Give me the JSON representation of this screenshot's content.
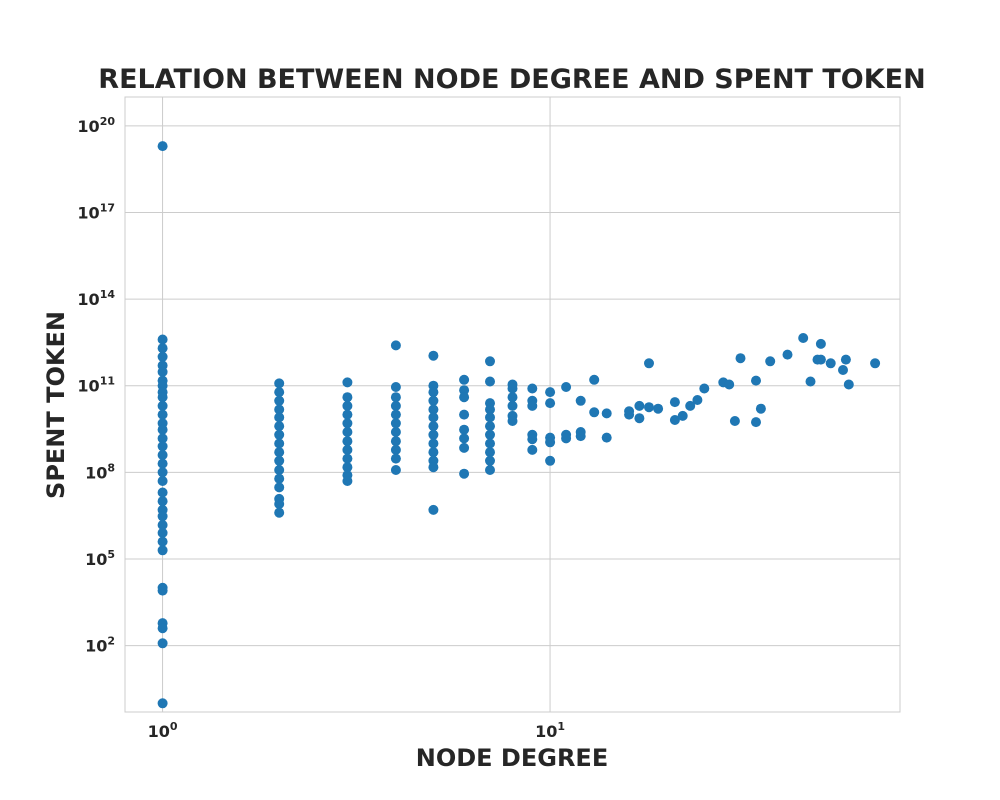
{
  "chart_data": {
    "type": "scatter",
    "title": "RELATION BETWEEN NODE DEGREE AND SPENT TOKEN",
    "xlabel": "NODE DEGREE",
    "ylabel": "SPENT TOKEN",
    "xscale": "log",
    "yscale": "log",
    "xlim": [
      0.8,
      80
    ],
    "ylim": [
      0.5,
      1e+21
    ],
    "grid": true,
    "marker_color": "#1f77b4",
    "x_ticks": [
      {
        "base": "10",
        "exp": "0",
        "value": 1
      },
      {
        "base": "10",
        "exp": "1",
        "value": 10
      }
    ],
    "y_ticks": [
      {
        "base": "10",
        "exp": "2",
        "value": 100.0
      },
      {
        "base": "10",
        "exp": "5",
        "value": 100000.0
      },
      {
        "base": "10",
        "exp": "8",
        "value": 100000000.0
      },
      {
        "base": "10",
        "exp": "11",
        "value": 100000000000.0
      },
      {
        "base": "10",
        "exp": "14",
        "value": 100000000000000.0
      },
      {
        "base": "10",
        "exp": "17",
        "value": 1e+17
      },
      {
        "base": "10",
        "exp": "20",
        "value": 1e+20
      }
    ],
    "points": [
      [
        1,
        2e+19
      ],
      [
        1,
        4000000000000.0
      ],
      [
        1,
        2000000000000.0
      ],
      [
        1,
        1000000000000.0
      ],
      [
        1,
        500000000000.0
      ],
      [
        1,
        300000000000.0
      ],
      [
        1,
        150000000000.0
      ],
      [
        1,
        100000000000.0
      ],
      [
        1,
        60000000000.0
      ],
      [
        1,
        40000000000.0
      ],
      [
        1,
        20000000000.0
      ],
      [
        1,
        10000000000.0
      ],
      [
        1,
        5000000000.0
      ],
      [
        1,
        3000000000.0
      ],
      [
        1,
        1500000000.0
      ],
      [
        1,
        800000000.0
      ],
      [
        1,
        400000000.0
      ],
      [
        1,
        200000000.0
      ],
      [
        1,
        100000000.0
      ],
      [
        1,
        50000000.0
      ],
      [
        1,
        20000000.0
      ],
      [
        1,
        10000000.0
      ],
      [
        1,
        5000000.0
      ],
      [
        1,
        3000000.0
      ],
      [
        1,
        1500000.0
      ],
      [
        1,
        800000.0
      ],
      [
        1,
        400000.0
      ],
      [
        1,
        200000.0
      ],
      [
        1,
        10000.0
      ],
      [
        1,
        8000.0
      ],
      [
        1,
        600
      ],
      [
        1,
        400
      ],
      [
        1,
        120
      ],
      [
        1,
        1
      ],
      [
        2,
        120000000000.0
      ],
      [
        2,
        60000000000.0
      ],
      [
        2,
        30000000000.0
      ],
      [
        2,
        15000000000.0
      ],
      [
        2,
        8000000000.0
      ],
      [
        2,
        4000000000.0
      ],
      [
        2,
        2000000000.0
      ],
      [
        2,
        1000000000.0
      ],
      [
        2,
        500000000.0
      ],
      [
        2,
        250000000.0
      ],
      [
        2,
        120000000.0
      ],
      [
        2,
        60000000.0
      ],
      [
        2,
        30000000.0
      ],
      [
        2,
        12000000.0
      ],
      [
        2,
        8000000.0
      ],
      [
        2,
        4000000.0
      ],
      [
        3,
        130000000000.0
      ],
      [
        3,
        40000000000.0
      ],
      [
        3,
        20000000000.0
      ],
      [
        3,
        10000000000.0
      ],
      [
        3,
        5000000000.0
      ],
      [
        3,
        2500000000.0
      ],
      [
        3,
        1200000000.0
      ],
      [
        3,
        600000000.0
      ],
      [
        3,
        300000000.0
      ],
      [
        3,
        150000000.0
      ],
      [
        3,
        80000000.0
      ],
      [
        3,
        50000000.0
      ],
      [
        4,
        2500000000000.0
      ],
      [
        4,
        90000000000.0
      ],
      [
        4,
        40000000000.0
      ],
      [
        4,
        20000000000.0
      ],
      [
        4,
        10000000000.0
      ],
      [
        4,
        5000000000.0
      ],
      [
        4,
        2500000000.0
      ],
      [
        4,
        1200000000.0
      ],
      [
        4,
        600000000.0
      ],
      [
        4,
        300000000.0
      ],
      [
        4,
        120000000.0
      ],
      [
        5,
        1100000000000.0
      ],
      [
        5,
        100000000000.0
      ],
      [
        5,
        60000000000.0
      ],
      [
        5,
        30000000000.0
      ],
      [
        5,
        15000000000.0
      ],
      [
        5,
        8000000000.0
      ],
      [
        5,
        4000000000.0
      ],
      [
        5,
        2000000000.0
      ],
      [
        5,
        1000000000.0
      ],
      [
        5,
        500000000.0
      ],
      [
        5,
        250000000.0
      ],
      [
        5,
        150000000.0
      ],
      [
        5,
        5000000.0
      ],
      [
        6,
        160000000000.0
      ],
      [
        6,
        70000000000.0
      ],
      [
        6,
        40000000000.0
      ],
      [
        6,
        10000000000.0
      ],
      [
        6,
        3000000000.0
      ],
      [
        6,
        1500000000.0
      ],
      [
        6,
        700000000.0
      ],
      [
        6,
        90000000.0
      ],
      [
        7,
        700000000000.0
      ],
      [
        7,
        140000000000.0
      ],
      [
        7,
        25000000000.0
      ],
      [
        7,
        15000000000.0
      ],
      [
        7,
        8000000000.0
      ],
      [
        7,
        4000000000.0
      ],
      [
        7,
        2000000000.0
      ],
      [
        7,
        1000000000.0
      ],
      [
        7,
        500000000.0
      ],
      [
        7,
        250000000.0
      ],
      [
        7,
        120000000.0
      ],
      [
        8,
        110000000000.0
      ],
      [
        8,
        80000000000.0
      ],
      [
        8,
        40000000000.0
      ],
      [
        8,
        20000000000.0
      ],
      [
        8,
        9000000000.0
      ],
      [
        8,
        6000000000.0
      ],
      [
        9,
        80000000000.0
      ],
      [
        9,
        30000000000.0
      ],
      [
        9,
        20000000000.0
      ],
      [
        9,
        2000000000.0
      ],
      [
        9,
        1400000000.0
      ],
      [
        9,
        600000000.0
      ],
      [
        10,
        60000000000.0
      ],
      [
        10,
        25000000000.0
      ],
      [
        10,
        1600000000.0
      ],
      [
        10,
        1100000000.0
      ],
      [
        10,
        250000000.0
      ],
      [
        11,
        90000000000.0
      ],
      [
        11,
        2000000000.0
      ],
      [
        11,
        1500000000.0
      ],
      [
        12,
        30000000000.0
      ],
      [
        12,
        2500000000.0
      ],
      [
        12,
        1800000000.0
      ],
      [
        13,
        160000000000.0
      ],
      [
        13,
        12000000000.0
      ],
      [
        14,
        11000000000.0
      ],
      [
        14,
        1600000000.0
      ],
      [
        16,
        13000000000.0
      ],
      [
        16,
        10000000000.0
      ],
      [
        17,
        20000000000.0
      ],
      [
        17,
        7500000000.0
      ],
      [
        18,
        600000000000.0
      ],
      [
        18,
        18000000000.0
      ],
      [
        19,
        16000000000.0
      ],
      [
        21,
        27000000000.0
      ],
      [
        21,
        6500000000.0
      ],
      [
        22,
        9000000000.0
      ],
      [
        23,
        20000000000.0
      ],
      [
        24,
        32000000000.0
      ],
      [
        25,
        80000000000.0
      ],
      [
        28,
        130000000000.0
      ],
      [
        29,
        110000000000.0
      ],
      [
        30,
        6000000000.0
      ],
      [
        31,
        900000000000.0
      ],
      [
        34,
        150000000000.0
      ],
      [
        34,
        5500000000.0
      ],
      [
        35,
        16000000000.0
      ],
      [
        37,
        700000000000.0
      ],
      [
        41,
        1200000000000.0
      ],
      [
        45,
        4500000000000.0
      ],
      [
        47,
        140000000000.0
      ],
      [
        49,
        800000000000.0
      ],
      [
        50,
        2800000000000.0
      ],
      [
        50,
        800000000000.0
      ],
      [
        53,
        600000000000.0
      ],
      [
        57,
        350000000000.0
      ],
      [
        58,
        800000000000.0
      ],
      [
        59,
        110000000000.0
      ],
      [
        69,
        600000000000.0
      ]
    ]
  }
}
